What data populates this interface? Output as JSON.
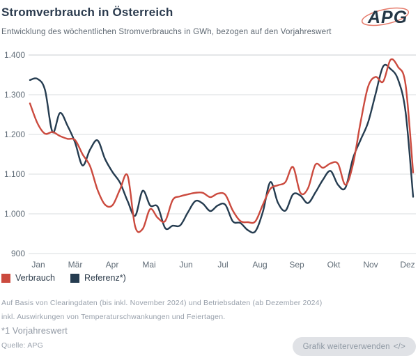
{
  "logo": {
    "text": "APG"
  },
  "chart_data": {
    "type": "line",
    "title": "Stromverbrauch in Österreich",
    "subtitle": "Entwicklung des wöchentlichen Stromverbrauchs in GWh, bezogen auf den Vorjahreswert",
    "unit": "GWh",
    "x_labels": [
      "Jan",
      "Mär",
      "Apr",
      "Mai",
      "Jun",
      "Jul",
      "Aug",
      "Sep",
      "Okt",
      "Nov",
      "Dez"
    ],
    "ylim": [
      900,
      1400
    ],
    "grid": true,
    "legend_position": "bottom-left",
    "y_ticks": [
      {
        "value": 1400,
        "label": "1.400"
      },
      {
        "value": 1300,
        "label": "1.300"
      },
      {
        "value": 1200,
        "label": "1.200"
      },
      {
        "value": 1100,
        "label": "1.100"
      },
      {
        "value": 1000,
        "label": "1.000"
      },
      {
        "value": 900,
        "label": "900"
      }
    ],
    "series": [
      {
        "name": "Verbrauch",
        "color": "#cb4a3e",
        "values": [
          1278,
          1228,
          1202,
          1206,
          1196,
          1189,
          1186,
          1150,
          1120,
          1060,
          1023,
          1022,
          1062,
          1096,
          968,
          962,
          1012,
          990,
          982,
          1035,
          1044,
          1049,
          1053,
          1053,
          1042,
          1051,
          1048,
          1008,
          982,
          979,
          981,
          1023,
          1063,
          1072,
          1080,
          1118,
          1053,
          1064,
          1124,
          1116,
          1127,
          1126,
          1073,
          1125,
          1230,
          1320,
          1345,
          1333,
          1388,
          1370,
          1325,
          1104
        ]
      },
      {
        "name": "Referenz*)",
        "color": "#253c50",
        "values": [
          1337,
          1340,
          1312,
          1206,
          1254,
          1222,
          1180,
          1122,
          1162,
          1185,
          1138,
          1105,
          1078,
          1032,
          995,
          1058,
          1021,
          1018,
          964,
          970,
          971,
          1003,
          1032,
          1026,
          1007,
          1021,
          1023,
          981,
          977,
          959,
          956,
          1005,
          1080,
          1028,
          1008,
          1049,
          1046,
          1027,
          1054,
          1086,
          1108,
          1073,
          1066,
          1140,
          1186,
          1230,
          1302,
          1371,
          1365,
          1338,
          1256,
          1043
        ]
      }
    ]
  },
  "footer": {
    "note1": "Auf Basis von Clearingdaten (bis inkl. November 2024) und Betriebsdaten (ab Dezember 2024)",
    "note2": "inkl. Auswirkungen von Temperaturschwankungen und Feiertagen.",
    "note3": "*1 Vorjahreswert",
    "source": "Quelle: APG",
    "button_label": "Grafik weiterverwenden",
    "button_icon": "</>"
  },
  "colors": {
    "grid": "#dadcdf",
    "grid_top": "#c9cdd2",
    "tick_text": "#5f6b76"
  }
}
